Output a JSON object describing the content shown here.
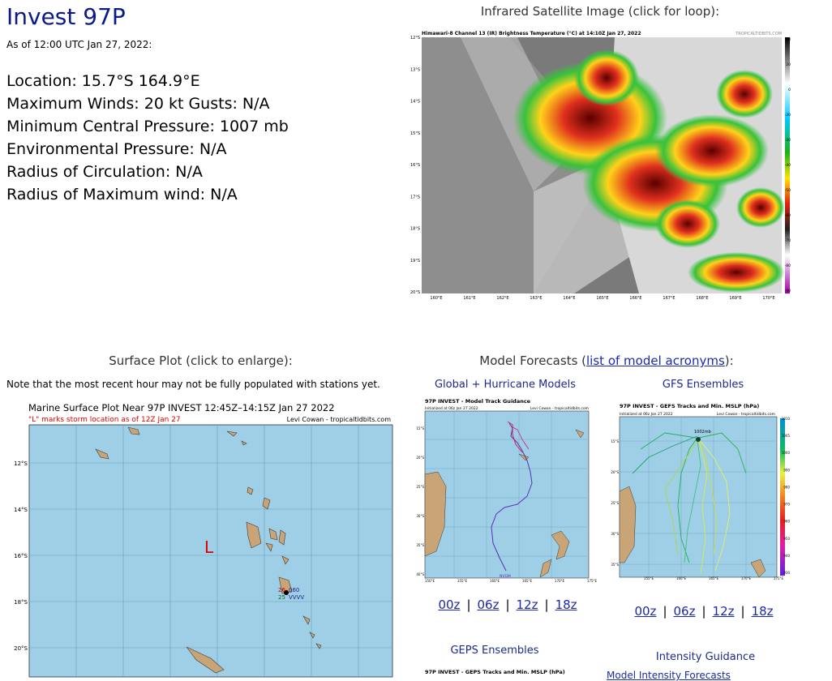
{
  "storm": {
    "title": "Invest 97P",
    "as_of": "As of 12:00 UTC Jan 27, 2022:",
    "location": "Location: 15.7°S 164.9°E",
    "winds": "Maximum Winds: 20 kt  Gusts: N/A",
    "pressure": "Minimum Central Pressure: 1007 mb",
    "env_pressure": "Environmental Pressure: N/A",
    "radius_circ": "Radius of Circulation: N/A",
    "radius_max_wind": "Radius of Maximum wind: N/A"
  },
  "satellite": {
    "heading": "Infrared Satellite Image (click for loop):",
    "caption": "Himawari-8 Channel 13 (IR) Brightness Temperature (°C) at 14:10Z Jan 27, 2022",
    "credit": "TROPICALTIDBITS.COM",
    "lat_labels": [
      "12°S",
      "13°S",
      "14°S",
      "15°S",
      "16°S",
      "17°S",
      "18°S",
      "19°S",
      "20°S"
    ],
    "lon_labels": [
      "160°E",
      "161°E",
      "162°E",
      "163°E",
      "164°E",
      "165°E",
      "166°E",
      "167°E",
      "168°E",
      "169°E",
      "170°E"
    ],
    "scale_labels": [
      "40",
      "20",
      "0",
      "-20",
      "-30",
      "-40",
      "-50",
      "-60",
      "-70",
      "-80",
      "-90"
    ]
  },
  "surface": {
    "heading": "Surface Plot (click to enlarge):",
    "note": "Note that the most recent hour may not be fully populated with stations yet.",
    "plot_title": "Marine Surface Plot Near 97P INVEST 12:45Z–14:15Z Jan 27 2022",
    "marker_note": "\"L\" marks storm location as of 12Z Jan 27",
    "credit": "Levi Cowan - tropicaltidbits.com",
    "lat_labels": [
      "12°S",
      "14°S",
      "16°S",
      "18°S",
      "20°S"
    ],
    "storm_marker": "L",
    "station_values": [
      "26",
      "060",
      "25",
      "VVVV"
    ]
  },
  "models": {
    "heading_prefix": "Model Forecasts (",
    "heading_link": "list of model acronyms",
    "heading_suffix": "):",
    "global": {
      "label": "Global + Hurricane Models",
      "plot_title": "97P INVEST - Model Track Guidance",
      "init": "Initialized at 06z Jan 27 2022",
      "credit": "Levi Cowan - tropicaltidbits.com",
      "track_label": "NVGM",
      "lat_labels": [
        "15°S",
        "20°S",
        "25°S",
        "30°S",
        "35°S",
        "40°S"
      ],
      "lon_labels": [
        "150°E",
        "155°E",
        "160°E",
        "165°E",
        "170°E",
        "175°E"
      ]
    },
    "gfs": {
      "label": "GFS Ensembles",
      "plot_title": "97P INVEST - GEFS Tracks and Min. MSLP (hPa)",
      "init": "Initialized at 06z Jan 27 2022",
      "credit": "Levi Cowan - tropicaltidbits.com",
      "pressure_label": "1002mb",
      "lat_labels": [
        "15°S",
        "20°S",
        "25°S",
        "30°S",
        "35°S"
      ],
      "lon_labels": [
        "155°E",
        "160°E",
        "165°E",
        "170°E",
        "175°E"
      ],
      "scale_labels": [
        "1010",
        "1005",
        "1000",
        "990",
        "980",
        "970",
        "960",
        "950",
        "940",
        "930"
      ]
    },
    "runs_left": [
      "00z",
      "06z",
      "12z",
      "18z"
    ],
    "runs_right": [
      "00z",
      "06z",
      "12z",
      "18z"
    ],
    "geps": {
      "label": "GEPS Ensembles",
      "plot_title": "97P INVEST - GEPS Tracks and Min. MSLP (hPa)"
    },
    "intensity": {
      "label": "Intensity Guidance",
      "link": "Model Intensity Forecasts"
    }
  },
  "colors": {
    "title": "#0a1a8a",
    "link": "#1a2aa8",
    "ocean": "#9ecfe6",
    "land": "#c8a476"
  }
}
